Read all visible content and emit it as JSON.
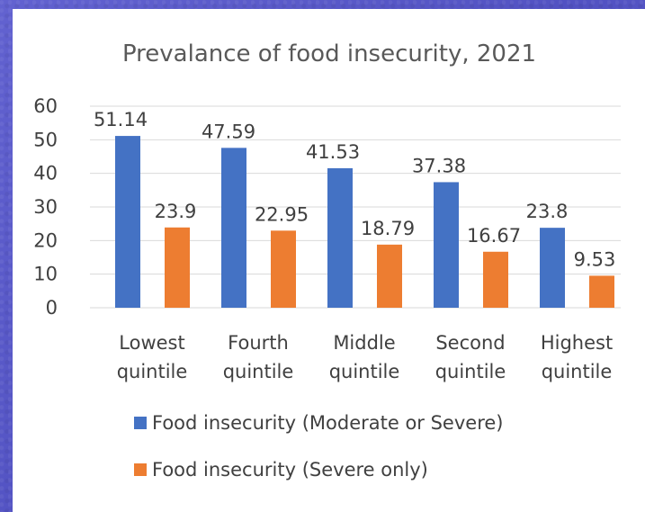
{
  "chart_data": {
    "type": "bar",
    "title": "Prevalance of food insecurity, 2021",
    "xlabel": "",
    "ylabel": "",
    "ylim": [
      0,
      60
    ],
    "yticks": [
      0,
      10,
      20,
      30,
      40,
      50,
      60
    ],
    "grid": true,
    "legend_position": "bottom",
    "categories": [
      [
        "Lowest",
        "quintile"
      ],
      [
        "Fourth",
        "quintile"
      ],
      [
        "Middle",
        "quintile"
      ],
      [
        "Second",
        "quintile"
      ],
      [
        "Highest",
        "quintile"
      ]
    ],
    "series": [
      {
        "name": "Food insecurity (Moderate or Severe)",
        "color": "#4472c4",
        "values": [
          51.14,
          47.59,
          41.53,
          37.38,
          23.8
        ],
        "labels": [
          "51.14",
          "47.59",
          "41.53",
          "37.38",
          "23.8"
        ]
      },
      {
        "name": "Food insecurity (Severe only)",
        "color": "#ed7d31",
        "values": [
          23.9,
          22.95,
          18.79,
          16.67,
          9.53
        ],
        "labels": [
          "23.9",
          "22.95",
          "18.79",
          "16.67",
          "9.53"
        ]
      }
    ]
  }
}
